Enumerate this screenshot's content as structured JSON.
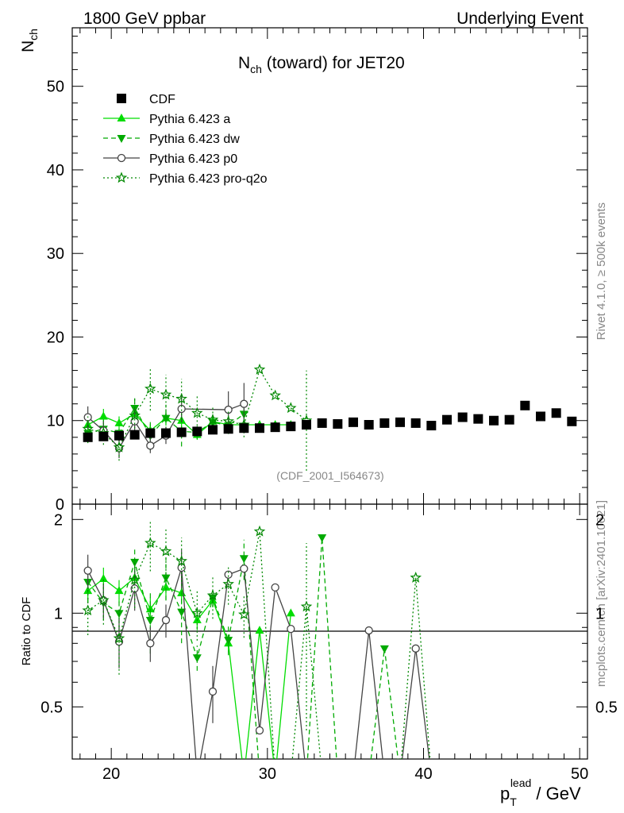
{
  "header": {
    "left": "1800 GeV ppbar",
    "right": "Underlying Event"
  },
  "side": {
    "rivet": "Rivet 4.1.0, ≥ 500k events",
    "mcplots": "mcplots.cern.ch [arXiv:2401.10621]"
  },
  "chart_data": {
    "type": "line",
    "title": "N_ch (toward) for JET20",
    "title_main": "N",
    "title_sub": "ch",
    "title_rest": " (toward) for JET20",
    "ylabel_main": "N",
    "ylabel_sub": "ch",
    "xlabel_main": "p",
    "xlabel_sub": "T",
    "xlabel_sup": "lead",
    "xlabel_rest": " / GeV",
    "ratio_ylabel": "Ratio to CDF",
    "analysis_tag": "(CDF_2001_I564673)",
    "xlim": [
      17.5,
      50.5
    ],
    "ylim": [
      0,
      57
    ],
    "ratio_ylim": [
      0.34,
      2.24
    ],
    "x_ticks": [
      20,
      30,
      40,
      50
    ],
    "y_ticks": [
      0,
      10,
      20,
      30,
      40,
      50
    ],
    "ratio_ticks": [
      0.5,
      1,
      2
    ],
    "series": [
      {
        "name": "CDF",
        "style": "data",
        "color": "#000000",
        "x": [
          18.5,
          19.5,
          20.5,
          21.5,
          22.5,
          23.5,
          24.5,
          25.5,
          26.5,
          27.5,
          28.5,
          29.5,
          30.5,
          31.5,
          32.5,
          33.5,
          34.5,
          35.5,
          36.5,
          37.5,
          38.5,
          39.5,
          40.5,
          41.5,
          42.5,
          43.5,
          44.5,
          45.5,
          46.5,
          47.5,
          48.5,
          49.5
        ],
        "y": [
          8.0,
          8.1,
          8.2,
          8.3,
          8.5,
          8.5,
          8.6,
          8.7,
          8.9,
          9.0,
          9.1,
          9.1,
          9.2,
          9.3,
          9.5,
          9.7,
          9.6,
          9.8,
          9.5,
          9.7,
          9.8,
          9.7,
          9.4,
          10.1,
          10.4,
          10.2,
          10.0,
          10.1,
          11.8,
          10.5,
          10.9,
          9.9
        ]
      },
      {
        "name": "Pythia 6.423 a",
        "style": "solid-triangle-up",
        "color": "#00dd00",
        "x": [
          18.5,
          19.5,
          20.5,
          21.5,
          22.5,
          23.5,
          24.5,
          25.5,
          26.5,
          27.5,
          28.5,
          29.5,
          30.5,
          31.5
        ],
        "y": [
          9.5,
          10.5,
          9.7,
          10.8,
          8.8,
          10.3,
          10.0,
          8.3,
          9.9,
          9.5,
          9.5,
          9.5,
          9.5,
          9.5
        ],
        "err": [
          0.8,
          0.9,
          0.8,
          0.9,
          0.8,
          0.9,
          0.8,
          0.6,
          0.5,
          0.5,
          0,
          0,
          0,
          0
        ],
        "ratio_x": [
          18.5,
          19.5,
          20.5,
          21.5,
          22.5,
          23.5,
          24.5,
          25.5,
          26.5,
          27.5,
          28.5,
          29.5,
          30.5,
          31.5
        ],
        "ratio_y": [
          1.18,
          1.29,
          1.18,
          1.3,
          1.03,
          1.21,
          1.16,
          0.95,
          1.1,
          0.8,
          0.3,
          0.88,
          0.3,
          1.0
        ]
      },
      {
        "name": "Pythia 6.423 dw",
        "style": "dashed-triangle-down",
        "color": "#00aa00",
        "x": [
          18.5,
          19.5,
          20.5,
          21.5,
          22.5,
          23.5,
          24.5,
          25.5,
          26.5,
          27.5,
          28.5
        ],
        "y": [
          8.5,
          9.0,
          8.5,
          11.5,
          8.2,
          10.3,
          8.7,
          8.6,
          9.8,
          9.4,
          10.8
        ],
        "err": [
          1.2,
          1.1,
          1.0,
          1.3,
          1.8,
          1.6,
          1.8,
          0.8,
          0.6,
          1.0,
          1.6
        ],
        "ratio_x": [
          18.5,
          19.5,
          20.5,
          21.5,
          22.5,
          23.5,
          24.5,
          25.5,
          26.5,
          27.5,
          28.5,
          29.5,
          30.5,
          31.5,
          32.5,
          33.5,
          34.5,
          35.5,
          36.5,
          37.5,
          38.5,
          39.5
        ],
        "ratio_y": [
          1.26,
          1.08,
          1.0,
          1.46,
          0.95,
          1.3,
          1.01,
          0.72,
          1.12,
          0.82,
          1.5,
          0.3,
          0.3,
          0.3,
          0.3,
          1.75,
          0.3,
          0.3,
          0.3,
          0.77,
          0.3,
          0.3
        ]
      },
      {
        "name": "Pythia 6.423 p0",
        "style": "solid-open-circle",
        "color": "#444444",
        "x": [
          18.5,
          19.5,
          20.5,
          21.5,
          22.5,
          23.5,
          24.5,
          27.5,
          28.5
        ],
        "y": [
          10.4,
          8.8,
          6.7,
          9.9,
          7.0,
          8.2,
          11.4,
          11.3,
          12.0
        ],
        "err": [
          1.3,
          1.1,
          1.2,
          1.5,
          0.9,
          1.0,
          1.6,
          2.2,
          2.5
        ],
        "ratio_x": [
          18.5,
          19.5,
          20.5,
          21.5,
          22.5,
          23.5,
          24.5,
          25.5,
          26.5,
          27.5,
          28.5,
          29.5,
          30.5,
          31.5,
          32.5,
          33.5,
          34.5,
          35.5,
          36.5,
          37.5,
          38.5,
          39.5,
          40.5
        ],
        "ratio_y": [
          1.37,
          1.1,
          0.81,
          1.2,
          0.8,
          0.95,
          1.4,
          0.3,
          0.56,
          1.33,
          1.39,
          0.42,
          1.21,
          0.89,
          0.3,
          0.3,
          0.3,
          0.3,
          0.88,
          0.3,
          0.3,
          0.77,
          0.3
        ]
      },
      {
        "name": "Pythia 6.423 pro-q2o",
        "style": "dotted-star",
        "color": "#008800",
        "x": [
          18.5,
          19.5,
          20.5,
          21.5,
          22.5,
          23.5,
          24.5,
          25.5,
          26.5,
          27.5,
          28.5,
          29.5,
          30.5,
          31.5,
          32.5
        ],
        "y": [
          9.0,
          8.5,
          6.8,
          10.6,
          13.8,
          13.1,
          12.6,
          10.9,
          10.1,
          9.9,
          9.5,
          16.1,
          13.0,
          11.5,
          10.0
        ],
        "err": [
          1.5,
          1.4,
          1.6,
          2.0,
          2.6,
          2.4,
          2.4,
          2.0,
          1.6,
          1.4,
          1.5,
          0,
          0,
          0,
          6.0
        ],
        "ratio_x": [
          18.5,
          19.5,
          20.5,
          21.5,
          22.5,
          23.5,
          24.5,
          25.5,
          26.5,
          27.5,
          28.5,
          29.5,
          30.5,
          31.5,
          32.5,
          33.5,
          34.5,
          35.5,
          36.5,
          37.5,
          38.5,
          39.5,
          40.5
        ],
        "ratio_y": [
          1.02,
          1.1,
          0.83,
          1.28,
          1.68,
          1.58,
          1.47,
          1.0,
          1.14,
          1.24,
          0.99,
          1.83,
          0.3,
          0.3,
          1.05,
          0.3,
          0.3,
          0.3,
          0.3,
          0.3,
          0.3,
          1.3,
          0.3
        ]
      }
    ]
  }
}
